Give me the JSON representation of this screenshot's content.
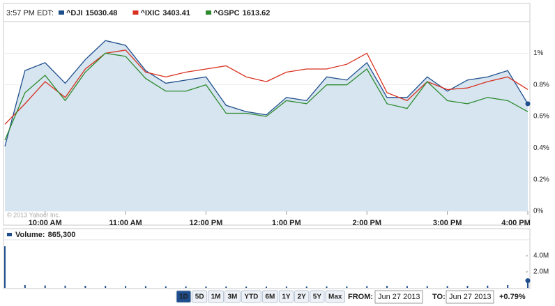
{
  "header": {
    "time": "3:57 PM EDT:"
  },
  "chart_data": [
    {
      "type": "line",
      "x": [
        "9:30 AM",
        "9:45 AM",
        "10:00 AM",
        "10:15 AM",
        "10:30 AM",
        "10:45 AM",
        "11:00 AM",
        "11:15 AM",
        "11:30 AM",
        "11:45 AM",
        "12:00 PM",
        "12:15 PM",
        "12:30 PM",
        "12:45 PM",
        "1:00 PM",
        "1:15 PM",
        "1:30 PM",
        "1:45 PM",
        "2:00 PM",
        "2:15 PM",
        "2:30 PM",
        "2:45 PM",
        "3:00 PM",
        "3:15 PM",
        "3:30 PM",
        "3:45 PM",
        "4:00 PM"
      ],
      "series": [
        {
          "name": "^DJI",
          "last": 15030.48,
          "color": "#1f4e8c",
          "values": [
            0.41,
            0.89,
            0.94,
            0.81,
            0.96,
            1.08,
            1.05,
            0.89,
            0.81,
            0.83,
            0.85,
            0.67,
            0.63,
            0.61,
            0.72,
            0.7,
            0.85,
            0.83,
            0.94,
            0.72,
            0.72,
            0.85,
            0.76,
            0.83,
            0.85,
            0.89,
            0.68
          ]
        },
        {
          "name": "^IXIC",
          "last": 3403.41,
          "color": "#d8301f",
          "values": [
            0.55,
            0.68,
            0.82,
            0.72,
            0.9,
            1.0,
            1.02,
            0.88,
            0.85,
            0.88,
            0.9,
            0.92,
            0.85,
            0.82,
            0.88,
            0.9,
            0.9,
            0.93,
            1.0,
            0.75,
            0.7,
            0.82,
            0.77,
            0.78,
            0.82,
            0.85,
            0.77
          ]
        },
        {
          "name": "^GSPC",
          "last": 1613.62,
          "color": "#2d8a2d",
          "values": [
            0.45,
            0.75,
            0.86,
            0.7,
            0.88,
            1.0,
            0.98,
            0.84,
            0.76,
            0.76,
            0.8,
            0.62,
            0.62,
            0.6,
            0.7,
            0.68,
            0.8,
            0.8,
            0.9,
            0.68,
            0.65,
            0.82,
            0.7,
            0.68,
            0.72,
            0.7,
            0.63
          ]
        }
      ],
      "fill_series": 0,
      "ylim": [
        0,
        1.2
      ],
      "yticks": [
        {
          "value": 0,
          "label": "0%"
        },
        {
          "value": 0.2,
          "label": "0.2%"
        },
        {
          "value": 0.4,
          "label": "0.4%"
        },
        {
          "value": 0.6,
          "label": "0.6%"
        },
        {
          "value": 0.8,
          "label": "0.8%"
        },
        {
          "value": 1,
          "label": "1%"
        }
      ],
      "xticks": [
        "10:00 AM",
        "11:00 AM",
        "12:00 PM",
        "1:00 PM",
        "2:00 PM",
        "3:00 PM",
        "4:00 PM"
      ],
      "grid": true,
      "copyright": "© 2013 Yahoo! Inc."
    },
    {
      "type": "bar",
      "title": "Volume:",
      "current": {
        "value": 865300,
        "label": "865,300"
      },
      "color": "#1f4e8c",
      "x": [
        "9:30 AM",
        "9:45 AM",
        "10:00 AM",
        "10:15 AM",
        "10:30 AM",
        "10:45 AM",
        "11:00 AM",
        "11:15 AM",
        "11:30 AM",
        "11:45 AM",
        "12:00 PM",
        "12:15 PM",
        "12:30 PM",
        "12:45 PM",
        "1:00 PM",
        "1:15 PM",
        "1:30 PM",
        "1:45 PM",
        "2:00 PM",
        "2:15 PM",
        "2:30 PM",
        "2:45 PM",
        "3:00 PM",
        "3:15 PM",
        "3:30 PM",
        "3:45 PM",
        "4:00 PM"
      ],
      "values": [
        5200000,
        350000,
        300000,
        280000,
        260000,
        250000,
        240000,
        220000,
        200000,
        190000,
        180000,
        170000,
        160000,
        160000,
        170000,
        170000,
        180000,
        190000,
        220000,
        250000,
        230000,
        220000,
        230000,
        250000,
        280000,
        350000,
        900000
      ],
      "ylim": [
        0,
        6000000
      ],
      "yticks": [
        {
          "value": 2000000,
          "label": "2.0M"
        },
        {
          "value": 4000000,
          "label": "4.0M"
        }
      ]
    }
  ],
  "controls": {
    "ranges": [
      "1D",
      "5D",
      "1M",
      "3M",
      "YTD",
      "6M",
      "1Y",
      "2Y",
      "5Y",
      "Max"
    ],
    "from_label": "FROM:",
    "from": "Jun 27 2013",
    "to_label": "TO:",
    "to": "Jun 27 2013",
    "change": {
      "value": 0.79,
      "label": "+0.79%"
    }
  }
}
